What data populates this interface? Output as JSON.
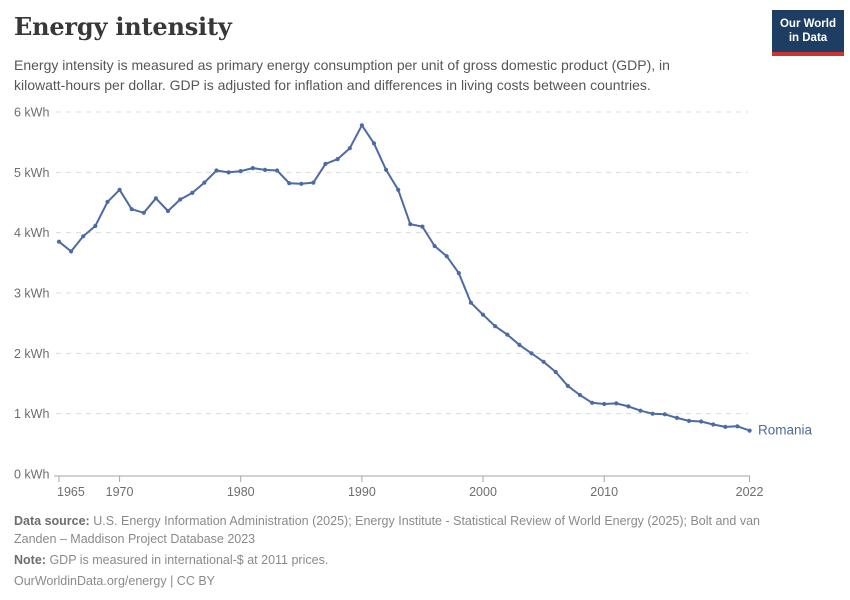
{
  "header": {
    "title": "Energy intensity",
    "subtitle": "Energy intensity is measured as primary energy consumption per unit of gross domestic product (GDP), in\nkilowatt-hours per dollar. GDP is adjusted for inflation and differences in living costs between countries.",
    "logo": {
      "line1": "Our World",
      "line2": "in Data"
    }
  },
  "chart_data": {
    "type": "line",
    "title": "Energy intensity",
    "unit_suffix": " kWh",
    "entity_label": "Romania",
    "x": [
      1965,
      1966,
      1967,
      1968,
      1969,
      1970,
      1971,
      1972,
      1973,
      1974,
      1975,
      1976,
      1977,
      1978,
      1979,
      1980,
      1981,
      1982,
      1983,
      1984,
      1985,
      1986,
      1987,
      1988,
      1989,
      1990,
      1991,
      1992,
      1993,
      1994,
      1995,
      1996,
      1997,
      1998,
      1999,
      2000,
      2001,
      2002,
      2003,
      2004,
      2005,
      2006,
      2007,
      2008,
      2009,
      2010,
      2011,
      2012,
      2013,
      2014,
      2015,
      2016,
      2017,
      2018,
      2019,
      2020,
      2021,
      2022
    ],
    "series": [
      {
        "name": "Romania",
        "values": [
          3.85,
          3.69,
          3.94,
          4.11,
          4.51,
          4.71,
          4.39,
          4.33,
          4.57,
          4.36,
          4.55,
          4.66,
          4.83,
          5.03,
          5.0,
          5.02,
          5.07,
          5.04,
          5.03,
          4.82,
          4.81,
          4.83,
          5.14,
          5.22,
          5.4,
          5.78,
          5.48,
          5.04,
          4.71,
          4.14,
          4.1,
          3.78,
          3.61,
          3.33,
          2.84,
          2.64,
          2.45,
          2.31,
          2.14,
          2.0,
          1.86,
          1.69,
          1.46,
          1.31,
          1.18,
          1.16,
          1.17,
          1.12,
          1.05,
          1.0,
          0.99,
          0.93,
          0.88,
          0.87,
          0.82,
          0.78,
          0.79,
          0.72
        ]
      }
    ],
    "ylim": [
      0,
      6
    ],
    "yticks": [
      0,
      1,
      2,
      3,
      4,
      5,
      6
    ],
    "ytick_labels": [
      "0 kWh",
      "1 kWh",
      "2 kWh",
      "3 kWh",
      "4 kWh",
      "5 kWh",
      "6 kWh"
    ],
    "xticks": [
      1965,
      1970,
      1980,
      1990,
      2000,
      2010,
      2022
    ],
    "grid": "horizontal-dashed",
    "legend_position": "end-of-line",
    "colors": {
      "line": "#4d6ba3",
      "entity_label": "#4d6ba3",
      "gridline": "#dcdcdc",
      "axis": "#a5a5a5",
      "tick_label": "#6e6e6e"
    }
  },
  "footer": {
    "data_source_label": "Data source:",
    "data_source_text": "U.S. Energy Information Administration (2025); Energy Institute - Statistical Review of World Energy (2025); Bolt and van\nZanden – Maddison Project Database 2023",
    "note_label": "Note:",
    "note_text": "GDP is measured in international-$ at 2011 prices.",
    "link_text": "OurWorldinData.org/energy | CC BY"
  }
}
